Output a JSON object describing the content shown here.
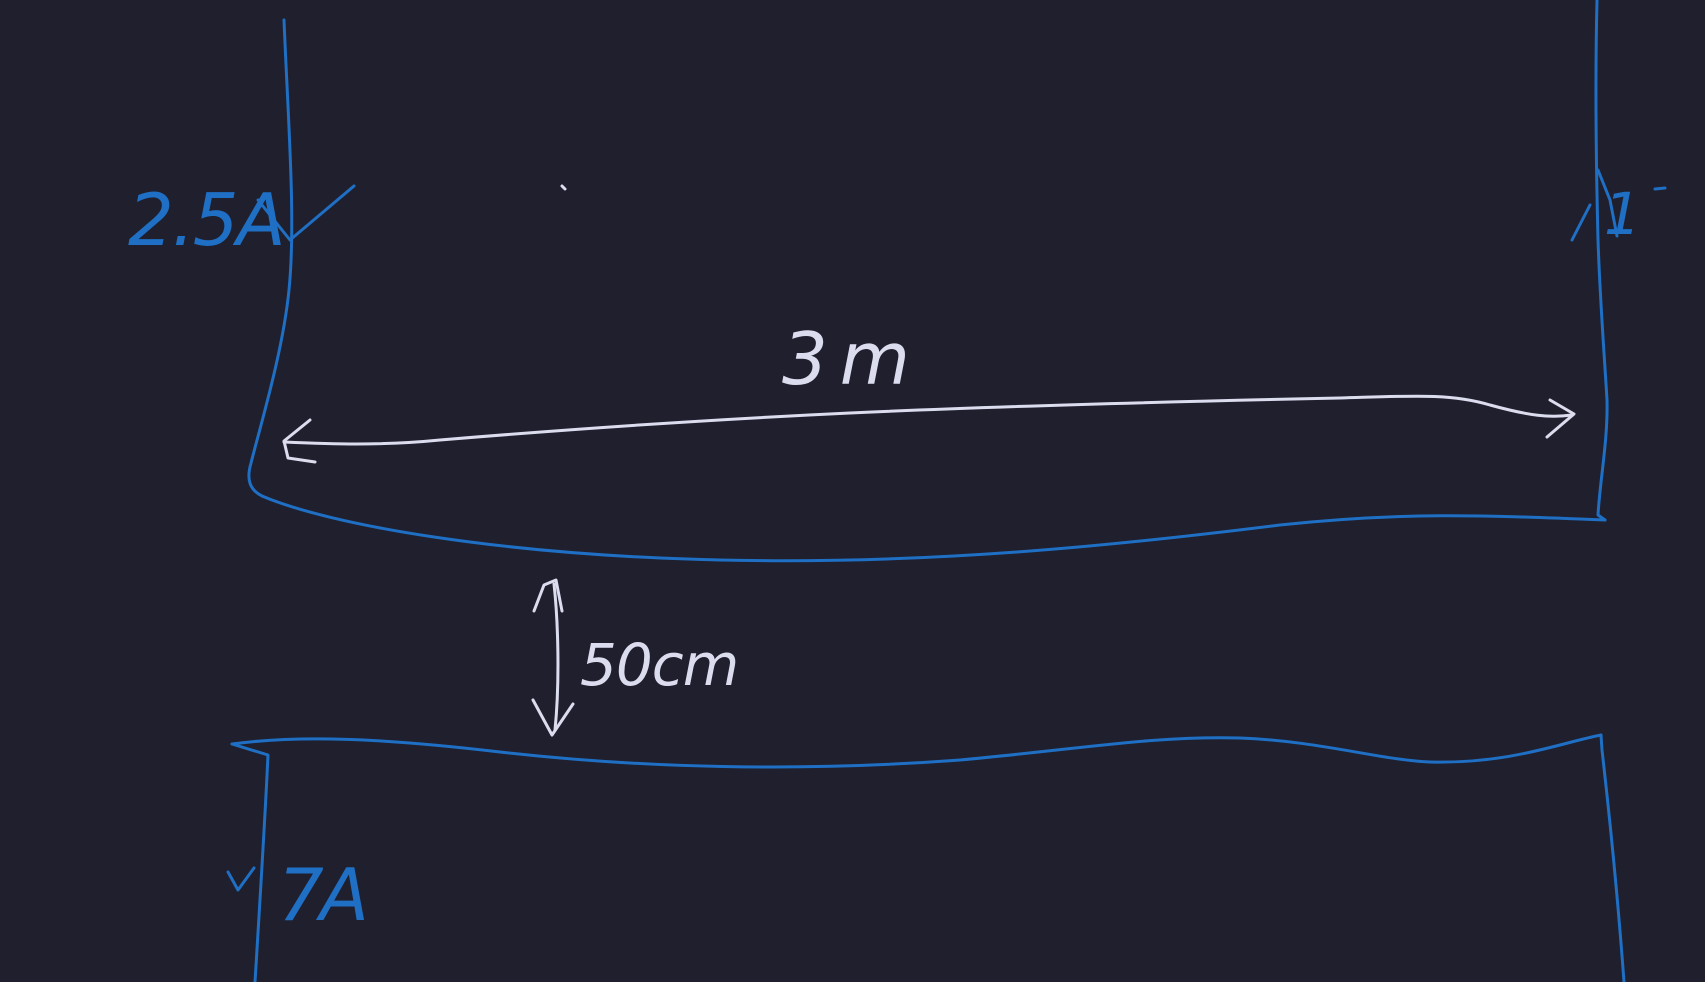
{
  "drawing": {
    "background_color": "#1f1f2e",
    "wire_color": "#1f6fc4",
    "annotation_color": "#dcdcef",
    "labels": {
      "upper_current": "2.5A",
      "right_current": "1",
      "length": "3m",
      "separation": "50cm",
      "lower_current": "7A"
    }
  }
}
